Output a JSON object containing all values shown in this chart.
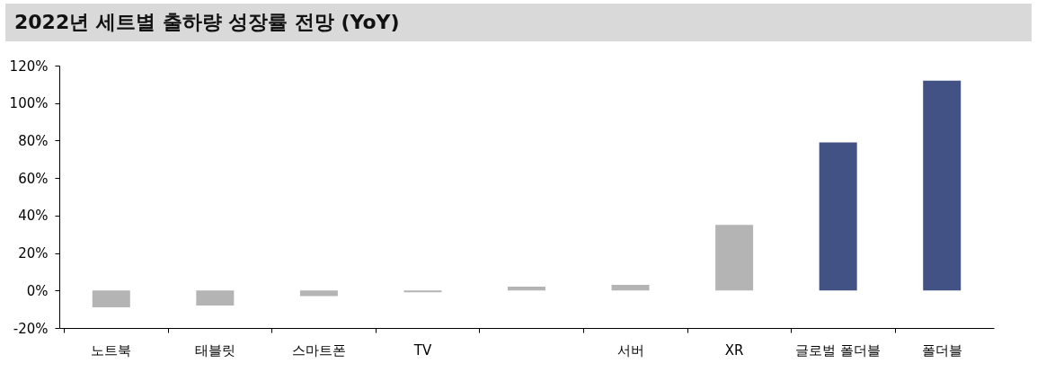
{
  "chart_data": {
    "type": "bar",
    "title": "2022년 세트별 출하량 성장률 전망 (YoY)",
    "categories": [
      "노트북",
      "태블릿",
      "스마트폰",
      "TV",
      null,
      "서버",
      "XR",
      "글로벌 폴더블",
      "폴더블"
    ],
    "values": [
      -9,
      -8,
      -3,
      -1,
      2,
      3,
      35,
      79,
      112
    ],
    "colors": [
      "#b4b4b4",
      "#b4b4b4",
      "#b4b4b4",
      "#b4b4b4",
      "#b4b4b4",
      "#b4b4b4",
      "#b4b4b4",
      "#435284",
      "#435284"
    ],
    "ylim": [
      -20,
      120
    ],
    "yticks": [
      {
        "value": -20,
        "label": "-20%"
      },
      {
        "value": 0,
        "label": "0%"
      },
      {
        "value": 20,
        "label": "20%"
      },
      {
        "value": 40,
        "label": "40%"
      },
      {
        "value": 60,
        "label": "60%"
      },
      {
        "value": 80,
        "label": "80%"
      },
      {
        "value": 100,
        "label": "100%"
      },
      {
        "value": 120,
        "label": "120%"
      }
    ],
    "grid": false
  }
}
